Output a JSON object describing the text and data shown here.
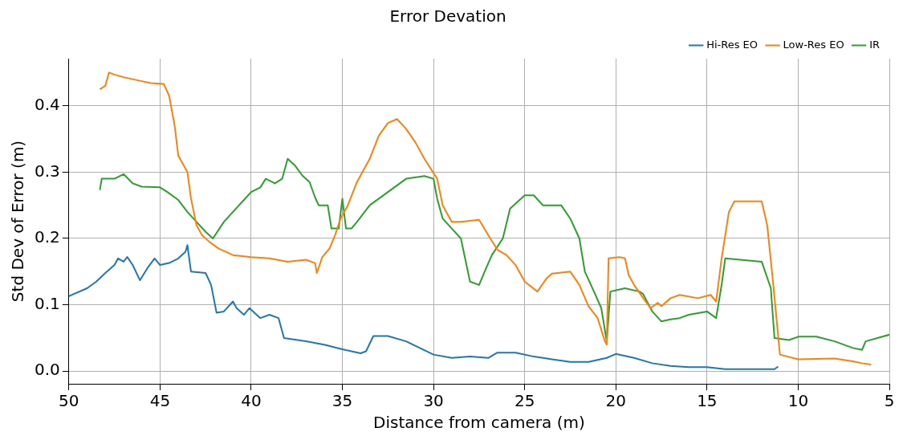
{
  "chart_data": {
    "type": "line",
    "title": "Error Devation",
    "xlabel": "Distance from camera (m)",
    "ylabel": "Std Dev of Error (m)",
    "xlim": [
      50,
      5
    ],
    "xticks": [
      50,
      45,
      40,
      35,
      30,
      25,
      20,
      15,
      10,
      5
    ],
    "ylim": [
      -0.019,
      0.471
    ],
    "yticks": [
      {
        "value": 0,
        "label": "0.0"
      },
      {
        "value": 0.1,
        "label": "0.1"
      },
      {
        "value": 0.2,
        "label": "0.2"
      },
      {
        "value": 0.3,
        "label": "0.3"
      },
      {
        "value": 0.4,
        "label": "0.4"
      }
    ],
    "grid": true,
    "legend": "top right",
    "marker": "none",
    "line_style": "solid",
    "series": [
      {
        "name": "Hi-Res EO",
        "color": "#1f77b4",
        "x": [
          50,
          49,
          48.5,
          48,
          47.5,
          47.3,
          47,
          46.8,
          46.5,
          46.1,
          45.7,
          45.3,
          45,
          44.5,
          44,
          43.6,
          43.5,
          43.3,
          42.5,
          42.2,
          41.9,
          41.5,
          41,
          40.8,
          40.4,
          40.1,
          39.5,
          39,
          38.5,
          38.2,
          37,
          36,
          35,
          34,
          33.7,
          33.3,
          32.5,
          31.5,
          30,
          29,
          28,
          27,
          26.5,
          25.5,
          24.5,
          23.5,
          22.5,
          21.5,
          20.5,
          20,
          19,
          18,
          17,
          16,
          15,
          14,
          12,
          11.3,
          11.1
        ],
        "values": [
          0.113,
          0.125,
          0.135,
          0.148,
          0.16,
          0.17,
          0.165,
          0.172,
          0.16,
          0.137,
          0.155,
          0.17,
          0.16,
          0.163,
          0.17,
          0.18,
          0.19,
          0.15,
          0.148,
          0.13,
          0.088,
          0.09,
          0.105,
          0.095,
          0.085,
          0.095,
          0.08,
          0.085,
          0.08,
          0.05,
          0.045,
          0.04,
          0.033,
          0.027,
          0.03,
          0.053,
          0.053,
          0.045,
          0.025,
          0.02,
          0.022,
          0.02,
          0.028,
          0.028,
          0.022,
          0.018,
          0.014,
          0.014,
          0.02,
          0.026,
          0.02,
          0.012,
          0.008,
          0.006,
          0.006,
          0.003,
          0.003,
          0.003,
          0.007
        ]
      },
      {
        "name": "Low-Res EO",
        "color": "#ff7f0e",
        "x": [
          48.3,
          48,
          47.8,
          47.5,
          47,
          46,
          45.5,
          44.8,
          44.5,
          44.2,
          44,
          43.5,
          43.3,
          43,
          42.7,
          42.3,
          41.8,
          41,
          40,
          39,
          38,
          37,
          36.5,
          36.4,
          36.1,
          35.7,
          35.4,
          35.1,
          34.7,
          34.2,
          33.5,
          33,
          32.5,
          32,
          31.5,
          31,
          30.5,
          29.8,
          29.5,
          29,
          28.5,
          27.5,
          27,
          26.5,
          26,
          25.5,
          25,
          24.3,
          23.8,
          23.5,
          22.5,
          22,
          21.5,
          21,
          20.6,
          20.5,
          20.4,
          19.8,
          19.5,
          19.3,
          19,
          18.5,
          18.1,
          17.7,
          17.5,
          17,
          16.5,
          15.5,
          14.8,
          14.5,
          14.2,
          13.8,
          13.5,
          12,
          11.7,
          11.4,
          11,
          10,
          8,
          7,
          6.5,
          6
        ],
        "values": [
          0.425,
          0.43,
          0.45,
          0.447,
          0.443,
          0.437,
          0.434,
          0.433,
          0.415,
          0.37,
          0.325,
          0.3,
          0.26,
          0.22,
          0.205,
          0.195,
          0.185,
          0.175,
          0.172,
          0.17,
          0.165,
          0.168,
          0.163,
          0.148,
          0.172,
          0.185,
          0.205,
          0.23,
          0.25,
          0.285,
          0.32,
          0.355,
          0.374,
          0.38,
          0.365,
          0.345,
          0.32,
          0.29,
          0.25,
          0.225,
          0.225,
          0.228,
          0.205,
          0.183,
          0.175,
          0.16,
          0.135,
          0.12,
          0.14,
          0.147,
          0.15,
          0.13,
          0.098,
          0.08,
          0.045,
          0.04,
          0.17,
          0.172,
          0.17,
          0.145,
          0.13,
          0.11,
          0.095,
          0.103,
          0.098,
          0.11,
          0.115,
          0.11,
          0.115,
          0.105,
          0.17,
          0.24,
          0.256,
          0.256,
          0.22,
          0.14,
          0.025,
          0.018,
          0.019,
          0.015,
          0.012,
          0.01
        ]
      },
      {
        "name": "IR",
        "color": "#2ca02c",
        "x": [
          48.3,
          48.2,
          47.5,
          47,
          46.5,
          46,
          45,
          44.6,
          44,
          43.5,
          43,
          42.5,
          42.1,
          41.5,
          41,
          40.5,
          40,
          39.5,
          39.2,
          38.7,
          38.3,
          38,
          37.6,
          37.2,
          36.8,
          36.5,
          36.3,
          35.8,
          35.6,
          35.2,
          35,
          34.8,
          34.5,
          34.2,
          33.5,
          32.5,
          31.5,
          30.5,
          30,
          29.8,
          29.5,
          29,
          28.5,
          28,
          27.5,
          27.2,
          26.8,
          26.2,
          25.8,
          25,
          24.5,
          24,
          23,
          22.5,
          22,
          21.7,
          21.2,
          20.8,
          20.5,
          20.3,
          19.5,
          18.7,
          18.5,
          18,
          17.5,
          17,
          16.5,
          16,
          15,
          14.5,
          14.2,
          14,
          12,
          11.5,
          11.3,
          10.5,
          10,
          9,
          8,
          7,
          6.5,
          6.3,
          5
        ],
        "values": [
          0.273,
          0.29,
          0.29,
          0.297,
          0.283,
          0.278,
          0.277,
          0.27,
          0.258,
          0.24,
          0.225,
          0.21,
          0.2,
          0.225,
          0.24,
          0.255,
          0.27,
          0.277,
          0.29,
          0.283,
          0.29,
          0.32,
          0.31,
          0.295,
          0.285,
          0.262,
          0.25,
          0.25,
          0.215,
          0.215,
          0.26,
          0.215,
          0.215,
          0.225,
          0.25,
          0.27,
          0.29,
          0.294,
          0.29,
          0.26,
          0.23,
          0.215,
          0.2,
          0.135,
          0.13,
          0.15,
          0.175,
          0.2,
          0.245,
          0.265,
          0.265,
          0.25,
          0.25,
          0.23,
          0.2,
          0.15,
          0.12,
          0.095,
          0.045,
          0.12,
          0.125,
          0.12,
          0.116,
          0.09,
          0.075,
          0.078,
          0.08,
          0.085,
          0.09,
          0.08,
          0.13,
          0.17,
          0.165,
          0.125,
          0.05,
          0.047,
          0.052,
          0.052,
          0.045,
          0.035,
          0.032,
          0.045,
          0.055
        ]
      }
    ]
  }
}
